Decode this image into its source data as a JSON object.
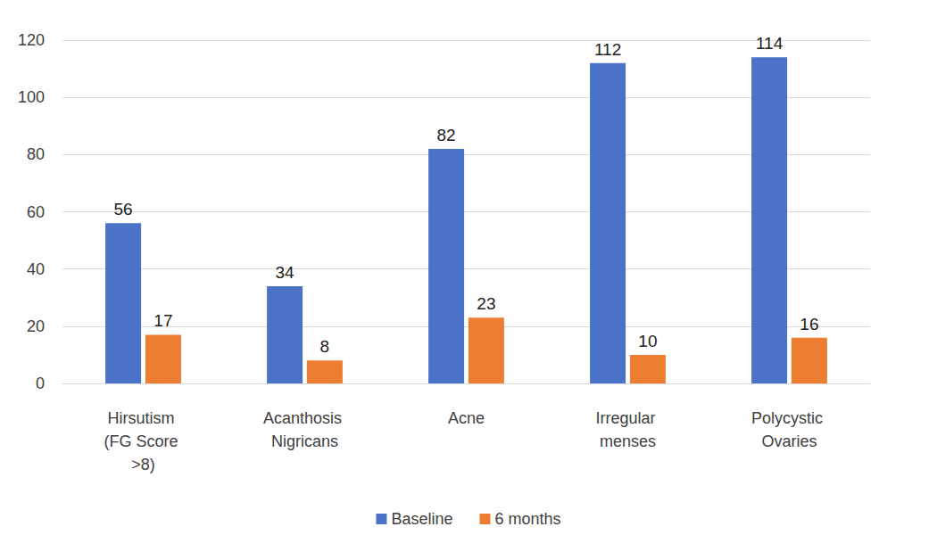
{
  "chart_data": {
    "type": "bar",
    "categories": [
      "Hirsutism (FG Score >8)",
      "Acanthosis Nigricans",
      "Acne",
      "Irregular menses",
      "Polycystic Ovaries"
    ],
    "series": [
      {
        "name": "Baseline",
        "color": "#4a72c8",
        "values": [
          56,
          34,
          82,
          112,
          114
        ]
      },
      {
        "name": "6 months",
        "color": "#ed7d31",
        "values": [
          17,
          8,
          23,
          10,
          16
        ]
      }
    ],
    "ylim": [
      0,
      120
    ],
    "yticks": [
      0,
      20,
      40,
      60,
      80,
      100,
      120
    ],
    "grid": true,
    "data_labels": true,
    "legend": "bottom"
  }
}
